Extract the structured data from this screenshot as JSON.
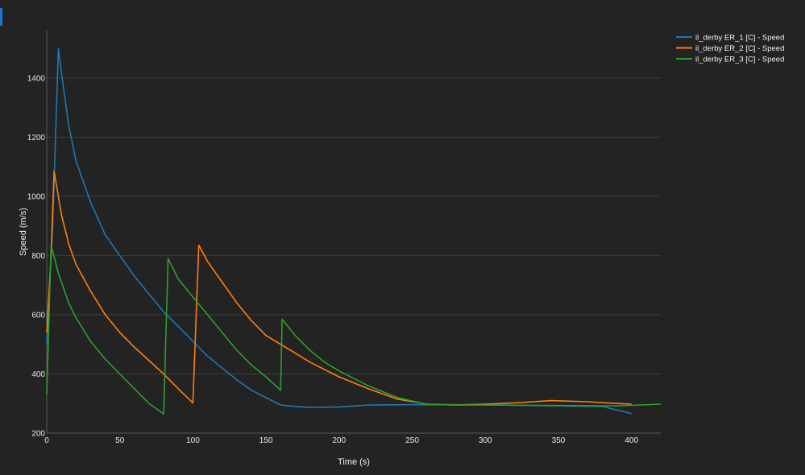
{
  "chart_data": {
    "type": "line",
    "xlabel": "Time (s)",
    "ylabel": "Speed (m/s)",
    "xlim": [
      0,
      420
    ],
    "ylim": [
      200,
      1560
    ],
    "xticks": [
      0,
      50,
      100,
      150,
      200,
      250,
      300,
      350,
      400
    ],
    "yticks": [
      200,
      400,
      600,
      800,
      1000,
      1200,
      1400
    ],
    "grid": true,
    "legend_position": "top-right",
    "series": [
      {
        "name": "il_derby ER_1 [C] - Speed",
        "color": "#1f77b4",
        "points": [
          [
            0,
            500
          ],
          [
            4,
            900
          ],
          [
            8,
            1500
          ],
          [
            10,
            1420
          ],
          [
            15,
            1240
          ],
          [
            20,
            1120
          ],
          [
            30,
            980
          ],
          [
            40,
            870
          ],
          [
            50,
            800
          ],
          [
            60,
            730
          ],
          [
            70,
            670
          ],
          [
            80,
            610
          ],
          [
            90,
            560
          ],
          [
            100,
            510
          ],
          [
            110,
            460
          ],
          [
            120,
            420
          ],
          [
            130,
            380
          ],
          [
            140,
            345
          ],
          [
            150,
            320
          ],
          [
            160,
            295
          ],
          [
            170,
            290
          ],
          [
            180,
            287
          ],
          [
            200,
            288
          ],
          [
            220,
            295
          ],
          [
            250,
            296
          ],
          [
            300,
            296
          ],
          [
            350,
            292
          ],
          [
            380,
            290
          ],
          [
            400,
            266
          ]
        ]
      },
      {
        "name": "il_derby ER_2 [C] - Speed",
        "color": "#ff7f0e",
        "points": [
          [
            0,
            540
          ],
          [
            3,
            800
          ],
          [
            5,
            1085
          ],
          [
            10,
            940
          ],
          [
            15,
            840
          ],
          [
            20,
            770
          ],
          [
            30,
            680
          ],
          [
            40,
            600
          ],
          [
            50,
            540
          ],
          [
            60,
            490
          ],
          [
            70,
            445
          ],
          [
            80,
            400
          ],
          [
            90,
            350
          ],
          [
            100,
            302
          ],
          [
            104,
            835
          ],
          [
            110,
            780
          ],
          [
            120,
            710
          ],
          [
            130,
            640
          ],
          [
            140,
            580
          ],
          [
            150,
            530
          ],
          [
            160,
            500
          ],
          [
            170,
            470
          ],
          [
            180,
            440
          ],
          [
            200,
            390
          ],
          [
            220,
            350
          ],
          [
            240,
            315
          ],
          [
            260,
            298
          ],
          [
            280,
            295
          ],
          [
            300,
            298
          ],
          [
            320,
            302
          ],
          [
            345,
            310
          ],
          [
            370,
            306
          ],
          [
            390,
            300
          ],
          [
            400,
            298
          ]
        ]
      },
      {
        "name": "il_derby ER_3 [C] - Speed",
        "color": "#2ca02c",
        "points": [
          [
            0,
            330
          ],
          [
            3,
            835
          ],
          [
            8,
            740
          ],
          [
            15,
            640
          ],
          [
            20,
            590
          ],
          [
            30,
            510
          ],
          [
            40,
            450
          ],
          [
            50,
            400
          ],
          [
            60,
            350
          ],
          [
            70,
            300
          ],
          [
            80,
            265
          ],
          [
            83,
            790
          ],
          [
            90,
            720
          ],
          [
            100,
            660
          ],
          [
            110,
            600
          ],
          [
            120,
            540
          ],
          [
            130,
            480
          ],
          [
            140,
            430
          ],
          [
            150,
            390
          ],
          [
            160,
            345
          ],
          [
            161,
            585
          ],
          [
            170,
            530
          ],
          [
            180,
            480
          ],
          [
            190,
            440
          ],
          [
            200,
            410
          ],
          [
            220,
            360
          ],
          [
            240,
            320
          ],
          [
            260,
            297
          ],
          [
            280,
            295
          ],
          [
            300,
            295
          ],
          [
            330,
            294
          ],
          [
            360,
            293
          ],
          [
            390,
            292
          ],
          [
            420,
            298
          ]
        ]
      }
    ]
  }
}
